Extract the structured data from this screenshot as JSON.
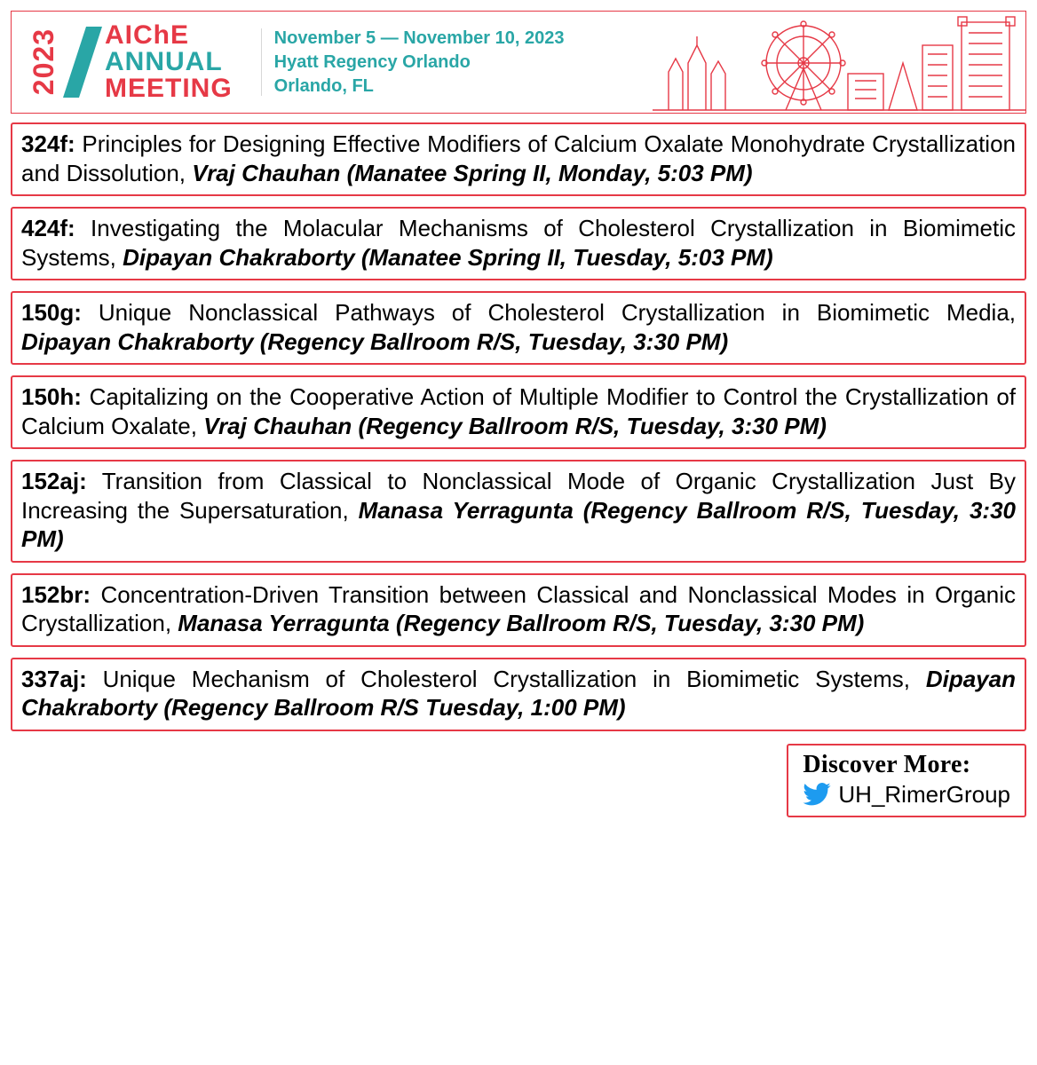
{
  "colors": {
    "accent_red": "#e63946",
    "accent_teal": "#29a6a6",
    "twitter_blue": "#1d9bf0",
    "text": "#000000",
    "background": "#ffffff"
  },
  "banner": {
    "year": "2023",
    "brand_line1": "AIChE",
    "brand_line2": "ANNUAL",
    "brand_line3": "MEETING",
    "dates": "November 5 — November 10, 2023",
    "venue": "Hyatt Regency Orlando",
    "city": "Orlando, FL"
  },
  "sessions": [
    {
      "code": "324f:",
      "title": " Principles for Designing Effective Modifiers of Calcium Oxalate Monohydrate Crystallization and Dissolution, ",
      "presenter": "Vraj Chauhan (Manatee Spring II, Monday, 5:03 PM)"
    },
    {
      "code": "424f:",
      "title": " Investigating the Molacular Mechanisms of Cholesterol Crystallization in Biomimetic Systems, ",
      "presenter": "Dipayan Chakraborty (Manatee Spring II, Tuesday, 5:03 PM)"
    },
    {
      "code": "150g:",
      "title": " Unique Nonclassical Pathways of Cholesterol Crystallization in Biomimetic Media, ",
      "presenter": "Dipayan Chakraborty (Regency Ballroom R/S, Tuesday, 3:30 PM)"
    },
    {
      "code": "150h:",
      "title": " Capitalizing on the Cooperative Action of Multiple Modifier to Control the Crystallization of Calcium Oxalate, ",
      "presenter": "Vraj Chauhan (Regency Ballroom R/S, Tuesday, 3:30 PM)"
    },
    {
      "code": "152aj:",
      "title": " Transition from Classical to Nonclassical Mode of Organic Crystallization Just By Increasing the Supersaturation, ",
      "presenter": "Manasa Yerragunta (Regency Ballroom R/S, Tuesday, 3:30 PM)"
    },
    {
      "code": "152br:",
      "title": " Concentration-Driven Transition between Classical and Nonclassical Modes in Organic Crystallization, ",
      "presenter": "Manasa Yerragunta (Regency Ballroom R/S, Tuesday, 3:30 PM)"
    },
    {
      "code": "337aj:",
      "title": " Unique Mechanism of Cholesterol Crystallization in Biomimetic Systems, ",
      "presenter": "Dipayan Chakraborty (Regency Ballroom R/S Tuesday, 1:00 PM)"
    }
  ],
  "discover": {
    "label": "Discover More:",
    "handle": "UH_RimerGroup"
  }
}
